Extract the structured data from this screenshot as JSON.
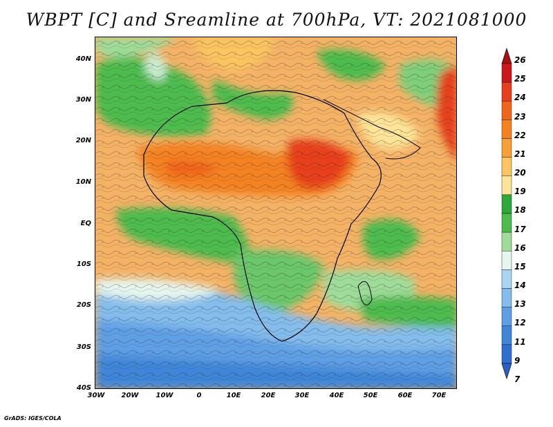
{
  "title": "WBPT [C] and Sreamline at 700hPa, VT: 2021081000",
  "footer": "GrADS: IGES/COLA",
  "axes": {
    "y_labels": [
      "40N",
      "30N",
      "20N",
      "10N",
      "EQ",
      "10S",
      "20S",
      "30S",
      "40S"
    ],
    "x_labels": [
      "30W",
      "20W",
      "10W",
      "0",
      "10E",
      "20E",
      "30E",
      "40E",
      "50E",
      "60E",
      "70E"
    ]
  },
  "colorbar": {
    "labels": [
      "26",
      "25",
      "24",
      "23",
      "22",
      "21",
      "20",
      "19",
      "18",
      "17",
      "16",
      "15",
      "14",
      "13",
      "12",
      "11",
      "9",
      "7"
    ],
    "colors": [
      "#a50f15",
      "#cb181d",
      "#e8401f",
      "#f0641c",
      "#f58220",
      "#f7a035",
      "#fcc561",
      "#fde498",
      "#2fa83a",
      "#4dbb4d",
      "#9fdc9a",
      "#e6f5ee",
      "#a8d5f2",
      "#84bdec",
      "#5e9fe4",
      "#3f86d8",
      "#2f6fcf",
      "#2a5fc4"
    ]
  }
}
